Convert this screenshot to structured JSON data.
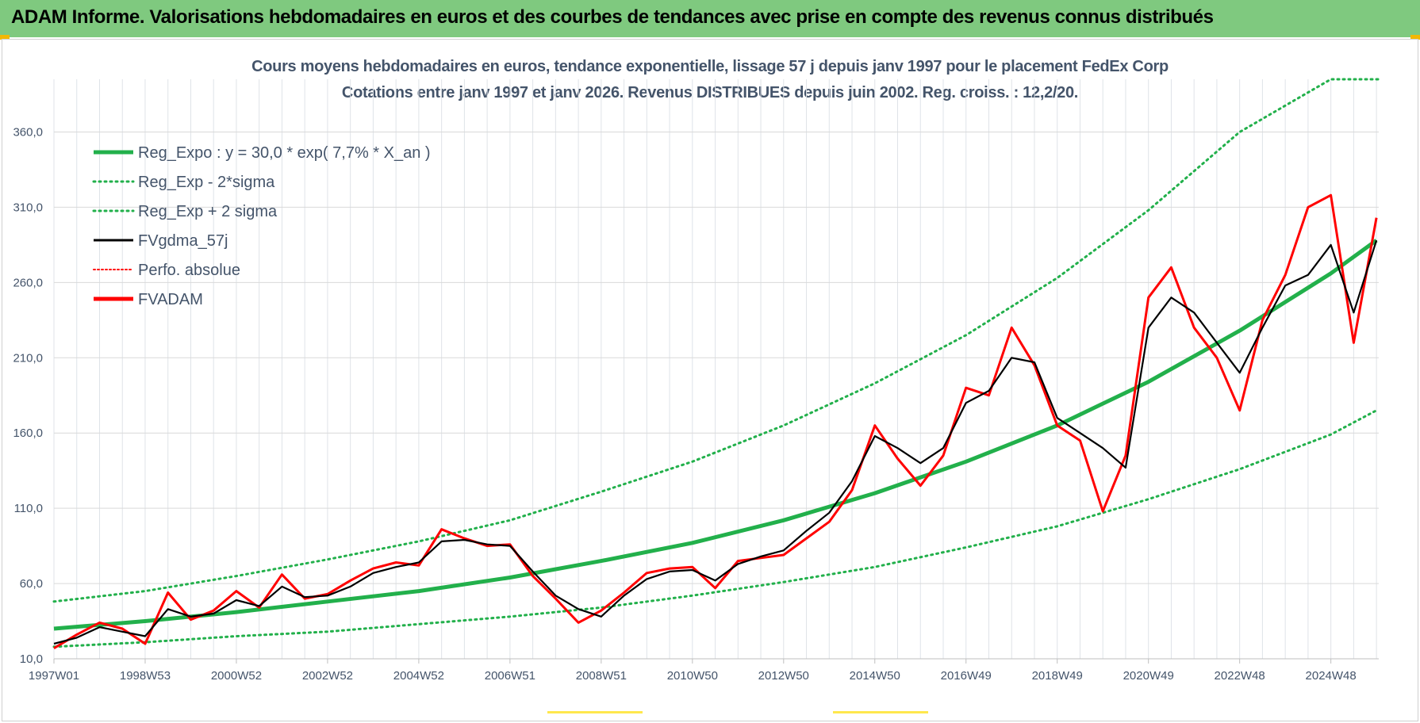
{
  "header": {
    "banner": "ADAM Informe. Valorisations hebdomadaires en euros et des courbes de tendances avec prise en compte des revenus connus distribués"
  },
  "chart_data": {
    "type": "line",
    "title_line1": "Cours moyens hebdomadaires en euros, tendance exponentielle, lissage 57 j depuis janv 1997  pour le placement FedEx Corp",
    "title_line2": "Cotations entre janv 1997 et janv 2026. Revenus DISTRIBUES depuis juin 2002. Reg. croiss. : 12,2/20.",
    "ylim": [
      10,
      395
    ],
    "yticks": [
      "10,0",
      "60,0",
      "110,0",
      "160,0",
      "210,0",
      "260,0",
      "310,0",
      "360,0"
    ],
    "ytick_values": [
      10,
      60,
      110,
      160,
      210,
      260,
      310,
      360
    ],
    "x_tick_labels": [
      "1997W01",
      "1998W53",
      "2000W52",
      "2002W52",
      "2004W52",
      "2006W51",
      "2008W51",
      "2010W50",
      "2012W50",
      "2014W50",
      "2016W49",
      "2018W49",
      "2020W49",
      "2022W48",
      "2024W48"
    ],
    "x_tick_years": [
      1997.0,
      1999.0,
      2001.0,
      2003.0,
      2005.0,
      2007.0,
      2009.0,
      2011.0,
      2013.0,
      2015.0,
      2017.0,
      2019.0,
      2021.0,
      2023.0,
      2025.0
    ],
    "xlim": [
      1997.0,
      2026.05
    ],
    "grid": true,
    "legend_position": "top-left",
    "legend": [
      {
        "label": "Reg_Expo : y = 30,0 * exp( 7,7% *  X_an )",
        "color": "#22b04b",
        "style": "solid-thick"
      },
      {
        "label": "Reg_Exp - 2*sigma",
        "color": "#22b04b",
        "style": "dotted"
      },
      {
        "label": "Reg_Exp + 2 sigma",
        "color": "#22b04b",
        "style": "dotted"
      },
      {
        "label": "FVgdma_57j",
        "color": "#000000",
        "style": "solid"
      },
      {
        "label": "Perfo. absolue",
        "color": "#ff0000",
        "style": "dotted"
      },
      {
        "label": "FVADAM",
        "color": "#ff0000",
        "style": "solid-thick"
      }
    ],
    "series": [
      {
        "name": "Reg_Expo : y = 30,0 * exp( 7,7% *  X_an )",
        "x": [
          1997.0,
          1999.0,
          2001.0,
          2003.0,
          2005.0,
          2007.0,
          2009.0,
          2011.0,
          2013.0,
          2015.0,
          2017.0,
          2019.0,
          2021.0,
          2023.0,
          2025.0,
          2026.0
        ],
        "y": [
          30,
          35,
          41,
          48,
          55,
          64,
          75,
          87,
          102,
          120,
          141,
          165,
          194,
          228,
          266,
          288
        ]
      },
      {
        "name": "Reg_Exp - 2*sigma",
        "x": [
          1997.0,
          1999.0,
          2001.0,
          2003.0,
          2005.0,
          2007.0,
          2009.0,
          2011.0,
          2013.0,
          2015.0,
          2017.0,
          2019.0,
          2021.0,
          2023.0,
          2025.0,
          2026.0
        ],
        "y": [
          18,
          21,
          25,
          28,
          33,
          38,
          44,
          52,
          61,
          71,
          84,
          98,
          116,
          136,
          159,
          175
        ]
      },
      {
        "name": "Reg_Exp + 2 sigma",
        "x": [
          1997.0,
          1999.0,
          2001.0,
          2003.0,
          2005.0,
          2007.0,
          2009.0,
          2011.0,
          2013.0,
          2015.0,
          2017.0,
          2019.0,
          2021.0,
          2023.0,
          2025.0,
          2026.05
        ],
        "y": [
          48,
          55,
          65,
          76,
          88,
          102,
          121,
          141,
          165,
          193,
          225,
          263,
          308,
          360,
          395,
          395
        ]
      },
      {
        "name": "FVgdma_57j",
        "x": [
          1997.0,
          1997.5,
          1998.0,
          1998.5,
          1999.0,
          1999.5,
          2000.0,
          2000.5,
          2001.0,
          2001.5,
          2002.0,
          2002.5,
          2003.0,
          2003.5,
          2004.0,
          2004.5,
          2005.0,
          2005.5,
          2006.0,
          2006.5,
          2007.0,
          2007.5,
          2008.0,
          2008.5,
          2009.0,
          2009.5,
          2010.0,
          2010.5,
          2011.0,
          2011.5,
          2012.0,
          2012.5,
          2013.0,
          2013.5,
          2014.0,
          2014.5,
          2015.0,
          2015.5,
          2016.0,
          2016.5,
          2017.0,
          2017.5,
          2018.0,
          2018.5,
          2019.0,
          2019.5,
          2020.0,
          2020.5,
          2021.0,
          2021.5,
          2022.0,
          2022.5,
          2023.0,
          2023.5,
          2024.0,
          2024.5,
          2025.0,
          2025.5,
          2026.0
        ],
        "y": [
          20,
          24,
          31,
          28,
          25,
          43,
          38,
          40,
          49,
          45,
          58,
          51,
          52,
          58,
          67,
          71,
          74,
          88,
          89,
          86,
          85,
          68,
          52,
          43,
          38,
          52,
          63,
          68,
          69,
          62,
          73,
          78,
          82,
          95,
          107,
          128,
          158,
          150,
          140,
          150,
          180,
          188,
          210,
          207,
          170,
          160,
          150,
          137,
          230,
          250,
          240,
          220,
          200,
          230,
          258,
          265,
          285,
          240,
          288
        ]
      },
      {
        "name": "FVADAM",
        "x": [
          1997.0,
          1997.5,
          1998.0,
          1998.5,
          1999.0,
          1999.5,
          2000.0,
          2000.5,
          2001.0,
          2001.5,
          2002.0,
          2002.5,
          2003.0,
          2003.5,
          2004.0,
          2004.5,
          2005.0,
          2005.5,
          2006.0,
          2006.5,
          2007.0,
          2007.5,
          2008.0,
          2008.5,
          2009.0,
          2009.5,
          2010.0,
          2010.5,
          2011.0,
          2011.5,
          2012.0,
          2012.5,
          2013.0,
          2013.5,
          2014.0,
          2014.5,
          2015.0,
          2015.5,
          2016.0,
          2016.5,
          2017.0,
          2017.5,
          2018.0,
          2018.5,
          2019.0,
          2019.5,
          2020.0,
          2020.5,
          2021.0,
          2021.5,
          2022.0,
          2022.5,
          2023.0,
          2023.5,
          2024.0,
          2024.5,
          2025.0,
          2025.5,
          2026.0
        ],
        "y": [
          17,
          26,
          34,
          30,
          20,
          54,
          36,
          42,
          55,
          44,
          66,
          50,
          53,
          62,
          70,
          74,
          72,
          96,
          90,
          85,
          86,
          65,
          50,
          34,
          42,
          54,
          67,
          70,
          71,
          57,
          75,
          77,
          79,
          90,
          101,
          122,
          165,
          143,
          125,
          145,
          190,
          185,
          230,
          205,
          165,
          155,
          108,
          145,
          250,
          270,
          230,
          210,
          175,
          235,
          265,
          310,
          318,
          220,
          303
        ]
      }
    ]
  }
}
